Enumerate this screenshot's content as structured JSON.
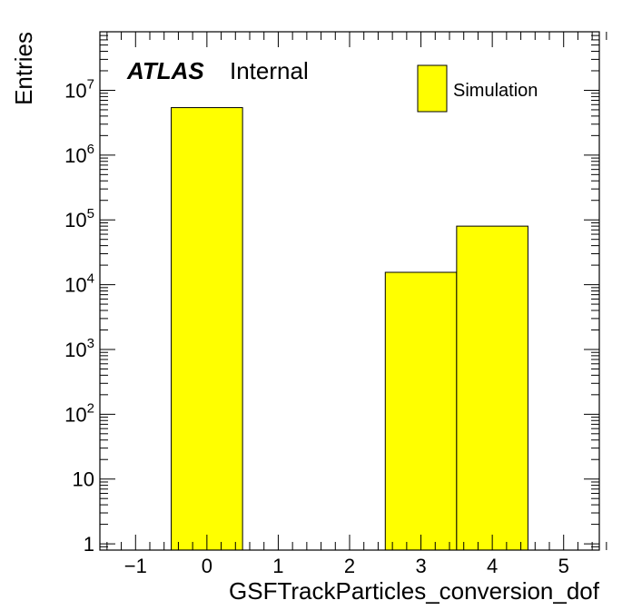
{
  "chart_data": {
    "type": "bar",
    "xlabel": "GSFTrackParticles_conversion_dof",
    "ylabel": "Entries",
    "x_bin_edges": [
      -0.5,
      0.5,
      1.5,
      2.5,
      3.5,
      4.5
    ],
    "bins": [
      {
        "x": 0,
        "value": 5400000
      },
      {
        "x": 1,
        "value": 0
      },
      {
        "x": 2,
        "value": 0
      },
      {
        "x": 3,
        "value": 15500
      },
      {
        "x": 4,
        "value": 80000
      }
    ],
    "xlim": [
      -1.5,
      5.5
    ],
    "ylim": [
      0.8,
      80000000
    ],
    "log_y": true,
    "fill_color": "#ffff00",
    "x_ticks": [
      "−1",
      "0",
      "1",
      "2",
      "3",
      "4",
      "5"
    ],
    "y_ticks": [
      {
        "value": 1,
        "base": "1",
        "exp": ""
      },
      {
        "value": 10,
        "base": "10",
        "exp": ""
      },
      {
        "value": 100,
        "base": "10",
        "exp": "2"
      },
      {
        "value": 1000,
        "base": "10",
        "exp": "3"
      },
      {
        "value": 10000,
        "base": "10",
        "exp": "4"
      },
      {
        "value": 100000,
        "base": "10",
        "exp": "5"
      },
      {
        "value": 1000000,
        "base": "10",
        "exp": "6"
      },
      {
        "value": 10000000,
        "base": "10",
        "exp": "7"
      }
    ],
    "legend": {
      "entries": [
        {
          "label": "Simulation",
          "color": "#ffff00"
        }
      ],
      "placement": "top-right"
    },
    "annotation": {
      "experiment": "ATLAS",
      "status": "Internal"
    }
  }
}
